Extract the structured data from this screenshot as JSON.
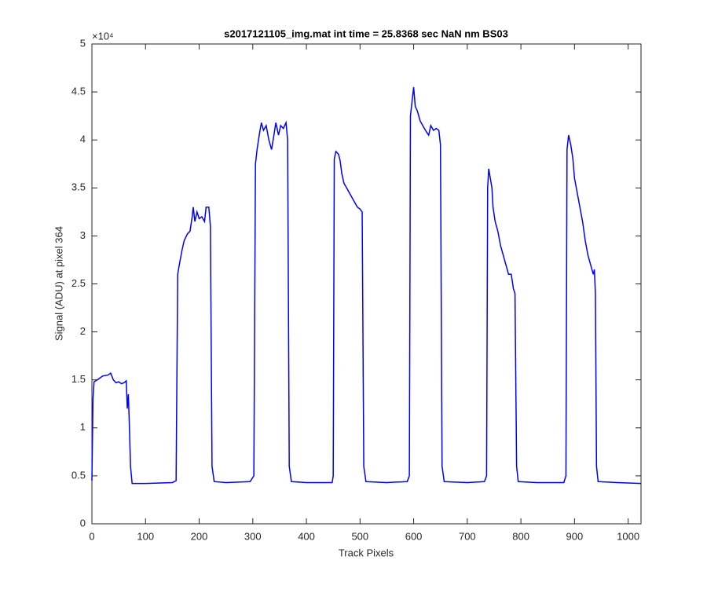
{
  "chart_data": {
    "type": "line",
    "title": "s2017121105_img.mat int time = 25.8368 sec  NaN nm BS03",
    "x_label": "Track Pixels",
    "y_label": "Signal (ADU) at pixel 364",
    "y_exponent_label": "×10⁴",
    "color": "#0000ff",
    "x": [
      0,
      2,
      4,
      10,
      20,
      30,
      35,
      40,
      45,
      50,
      55,
      60,
      64,
      66,
      68,
      70,
      72,
      75,
      100,
      150,
      157,
      160,
      163,
      168,
      172,
      178,
      183,
      187,
      189,
      192,
      196,
      200,
      205,
      210,
      213,
      218,
      221,
      224,
      228,
      250,
      295,
      302,
      305,
      308,
      312,
      316,
      320,
      325,
      330,
      335,
      338,
      343,
      348,
      352,
      357,
      362,
      365,
      368,
      372,
      400,
      448,
      450,
      452,
      455,
      460,
      463,
      466,
      470,
      475,
      480,
      485,
      490,
      495,
      500,
      504,
      507,
      511,
      550,
      588,
      592,
      594,
      597,
      600,
      603,
      607,
      612,
      617,
      622,
      628,
      632,
      637,
      642,
      647,
      650,
      653,
      657,
      700,
      732,
      736,
      738,
      740,
      743,
      746,
      748,
      752,
      757,
      762,
      767,
      772,
      777,
      782,
      786,
      789,
      792,
      795,
      830,
      880,
      884,
      886,
      889,
      893,
      897,
      900,
      905,
      910,
      915,
      920,
      925,
      930,
      935,
      937,
      939,
      941,
      944,
      980,
      1024
    ],
    "values": [
      0.45,
      1.3,
      1.48,
      1.5,
      1.54,
      1.55,
      1.57,
      1.5,
      1.47,
      1.48,
      1.46,
      1.47,
      1.49,
      1.2,
      1.35,
      1.0,
      0.6,
      0.42,
      0.42,
      0.43,
      0.45,
      2.6,
      2.7,
      2.85,
      2.95,
      3.02,
      3.05,
      3.2,
      3.3,
      3.15,
      3.25,
      3.18,
      3.2,
      3.15,
      3.3,
      3.3,
      3.1,
      0.6,
      0.44,
      0.43,
      0.44,
      0.5,
      3.75,
      3.9,
      4.05,
      4.18,
      4.1,
      4.15,
      4.0,
      3.9,
      4.0,
      4.18,
      4.05,
      4.15,
      4.12,
      4.18,
      4.0,
      0.6,
      0.44,
      0.43,
      0.43,
      0.5,
      3.8,
      3.88,
      3.85,
      3.78,
      3.65,
      3.55,
      3.5,
      3.45,
      3.4,
      3.35,
      3.3,
      3.28,
      3.25,
      0.6,
      0.44,
      0.43,
      0.44,
      0.5,
      4.25,
      4.4,
      4.55,
      4.35,
      4.3,
      4.2,
      4.15,
      4.1,
      4.05,
      4.15,
      4.1,
      4.12,
      4.1,
      3.95,
      0.6,
      0.44,
      0.43,
      0.44,
      0.5,
      3.5,
      3.7,
      3.6,
      3.5,
      3.3,
      3.15,
      3.05,
      2.9,
      2.8,
      2.7,
      2.6,
      2.6,
      2.45,
      2.4,
      0.6,
      0.44,
      0.43,
      0.43,
      0.5,
      3.9,
      4.05,
      3.95,
      3.8,
      3.6,
      3.45,
      3.3,
      3.15,
      2.95,
      2.8,
      2.7,
      2.6,
      2.65,
      2.4,
      0.6,
      0.44,
      0.43,
      0.42
    ],
    "xlim": [
      0,
      1024
    ],
    "xticks": [
      0,
      100,
      200,
      300,
      400,
      500,
      600,
      700,
      800,
      900,
      1000
    ],
    "ylim": [
      0,
      5
    ],
    "yticks": [
      0,
      0.5,
      1,
      1.5,
      2,
      2.5,
      3,
      3.5,
      4,
      4.5,
      5
    ],
    "grid": false
  }
}
